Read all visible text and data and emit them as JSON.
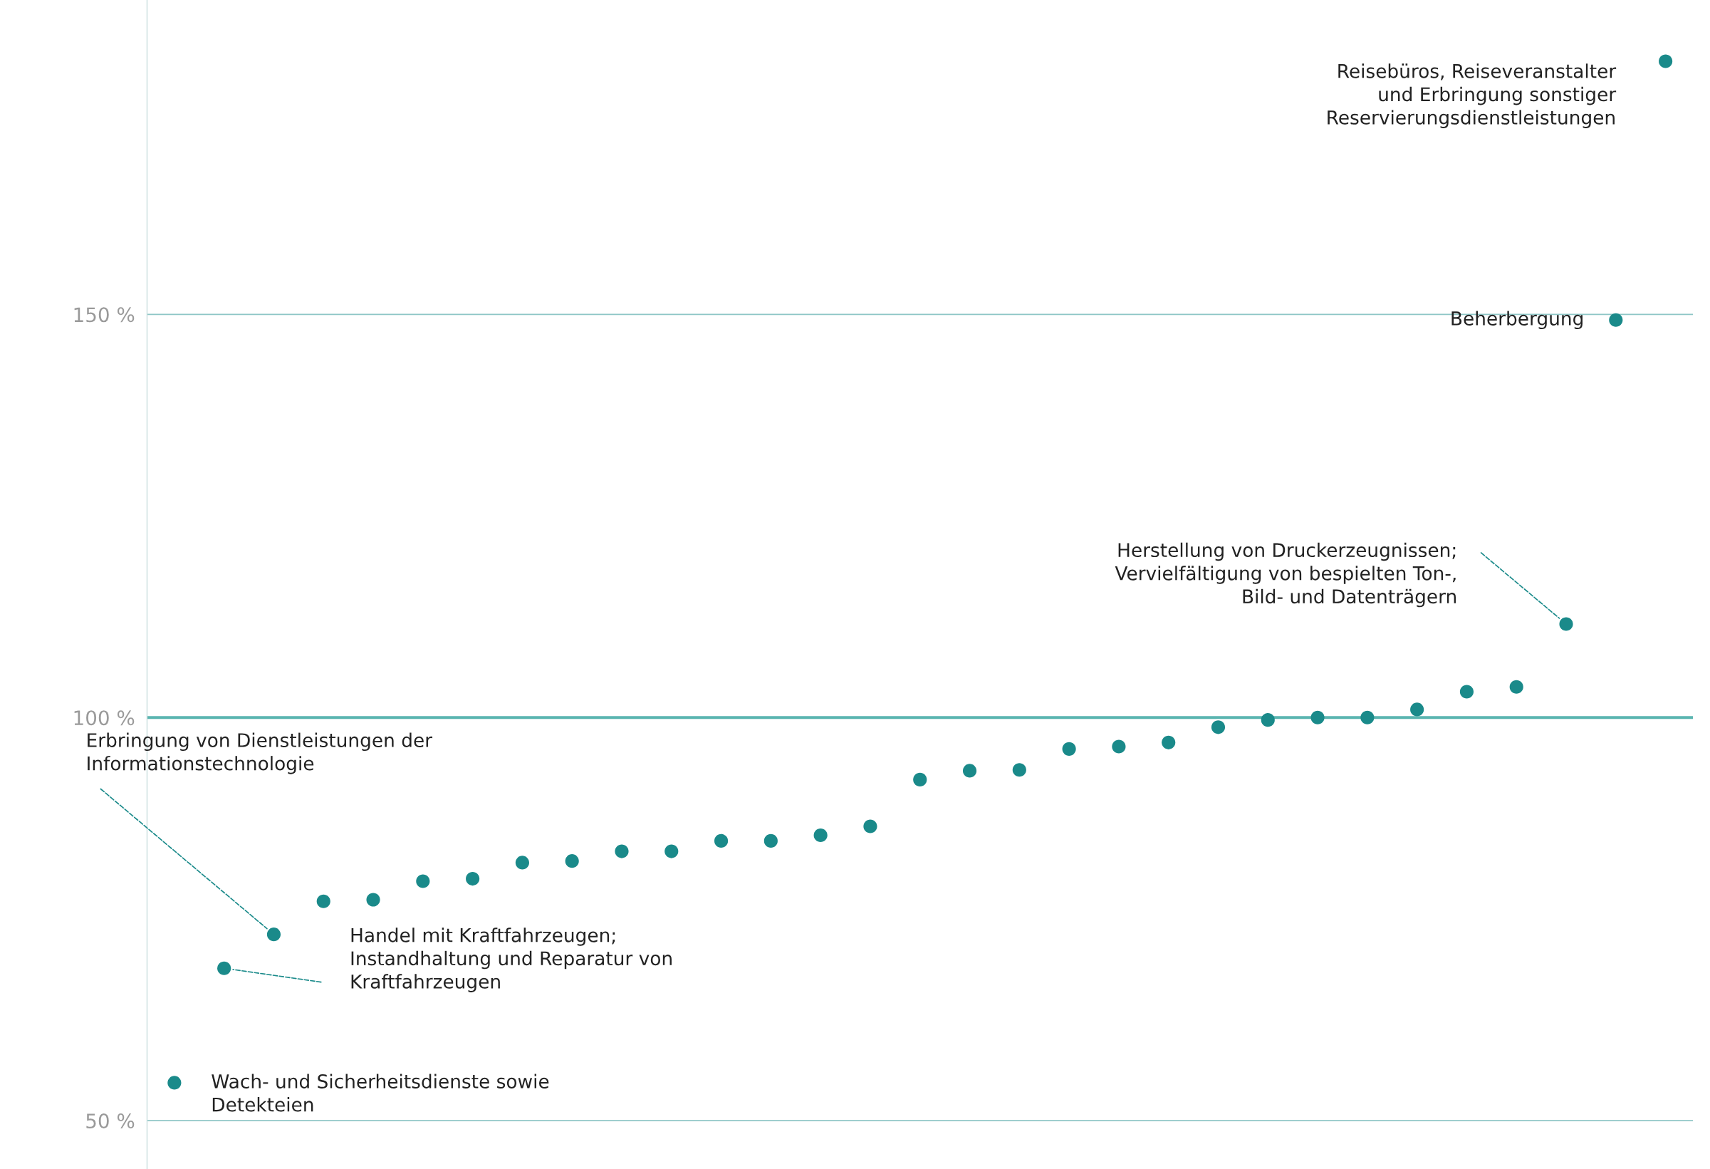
{
  "chart_data": {
    "type": "scatter",
    "categories": [
      null,
      null,
      null,
      null,
      null,
      null,
      null,
      null,
      null,
      null,
      null,
      null,
      null,
      null,
      null,
      null,
      null,
      null,
      null,
      null,
      null,
      null,
      null,
      null,
      null,
      null,
      null,
      null,
      null,
      null,
      null
    ],
    "series": [
      {
        "color": "#1a8a8a",
        "values": [
          54.7,
          68.9,
          73.1,
          77.2,
          77.4,
          79.7,
          80.0,
          82.0,
          82.2,
          83.4,
          83.4,
          84.7,
          84.7,
          85.4,
          86.5,
          92.3,
          93.4,
          93.5,
          96.1,
          96.4,
          96.9,
          98.8,
          99.7,
          100.0,
          100.0,
          101.0,
          103.2,
          103.8,
          111.6,
          149.3,
          181.4
        ]
      }
    ],
    "yticks": [
      {
        "value": 50,
        "label": "50 %"
      },
      {
        "value": 100,
        "label": "100 %"
      },
      {
        "value": 150,
        "label": "150 %"
      }
    ],
    "ylim": [
      44,
      189
    ],
    "grid": "y",
    "marker": "circle",
    "tick_labels": "y",
    "ref_lines": [
      {
        "axis": "y",
        "value": 100,
        "color": "#5ab5b0"
      }
    ],
    "annotations": [
      "Wach- und Sicherheitsdienste sowie\nDetekteien",
      "Handel mit Kraftfahrzeugen;\nInstandhaltung und Reparatur von\nKraftfahrzeugen",
      "Erbringung von Dienstleistungen der\nInformationstechnologie",
      "Herstellung von Druckerzeugnissen;\nVervielfältigung von bespielten Ton-,\nBild- und Datenträgern",
      "Beherbergung",
      "Reisebüros, Reiseveranstalter\nund Erbringung sonstiger\nReservierungsdienstleistungen"
    ]
  }
}
